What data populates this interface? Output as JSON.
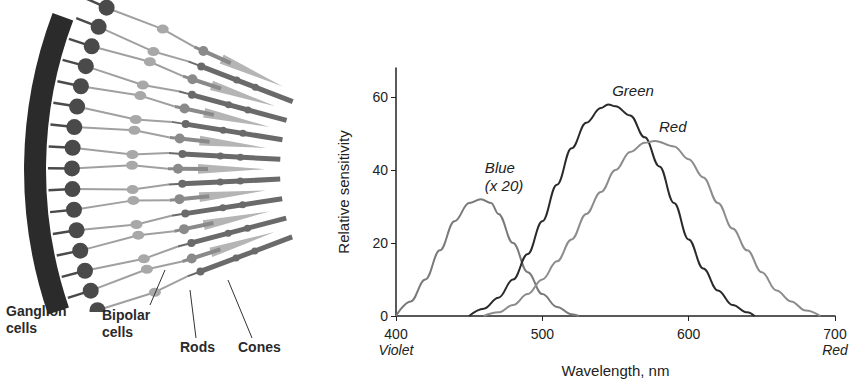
{
  "chart_data": {
    "type": "line",
    "xlabel": "Wavelength, nm",
    "ylabel": "Relative sensitivity",
    "xlim": [
      400,
      700
    ],
    "xticks": [
      400,
      500,
      600,
      700
    ],
    "ylim": [
      0,
      68
    ],
    "yticks": [
      0,
      20,
      40,
      60
    ],
    "x_end_labels": [
      "Violet",
      "Red"
    ],
    "grid": false,
    "marker": "circle",
    "line_style": "solid",
    "series": [
      {
        "name": "Blue",
        "note": "(x 20)",
        "color": "#7a7a7a",
        "x": [
          400,
          410,
          420,
          430,
          440,
          450,
          458,
          465,
          470,
          480,
          490,
          500,
          510,
          520,
          525
        ],
        "values": [
          0,
          4,
          10,
          18,
          26,
          31,
          32,
          31,
          28,
          20,
          12,
          6,
          2.5,
          0.5,
          0
        ]
      },
      {
        "name": "Green",
        "color": "#2a2a2a",
        "x": [
          450,
          460,
          470,
          480,
          490,
          500,
          510,
          520,
          530,
          540,
          545,
          550,
          560,
          570,
          580,
          590,
          600,
          610,
          620,
          630,
          640,
          645
        ],
        "values": [
          0,
          2,
          5,
          10,
          17,
          26,
          36,
          46,
          53,
          57,
          58,
          57.5,
          55,
          49,
          41,
          31,
          21,
          13,
          7,
          3,
          1,
          0
        ]
      },
      {
        "name": "Red",
        "color": "#8c8c8c",
        "x": [
          460,
          470,
          480,
          490,
          500,
          510,
          520,
          530,
          540,
          550,
          560,
          570,
          577,
          590,
          600,
          610,
          620,
          630,
          640,
          650,
          660,
          670,
          680,
          690
        ],
        "values": [
          0,
          1,
          3,
          6,
          10,
          15,
          21,
          28,
          34,
          40,
          45,
          47.5,
          48,
          46.5,
          43,
          38,
          31,
          24,
          18,
          12,
          7,
          4,
          1.5,
          0
        ]
      }
    ]
  },
  "diagram": {
    "labels": [
      "Ganglion cells",
      "Bipolar cells",
      "Rods",
      "Cones"
    ]
  }
}
